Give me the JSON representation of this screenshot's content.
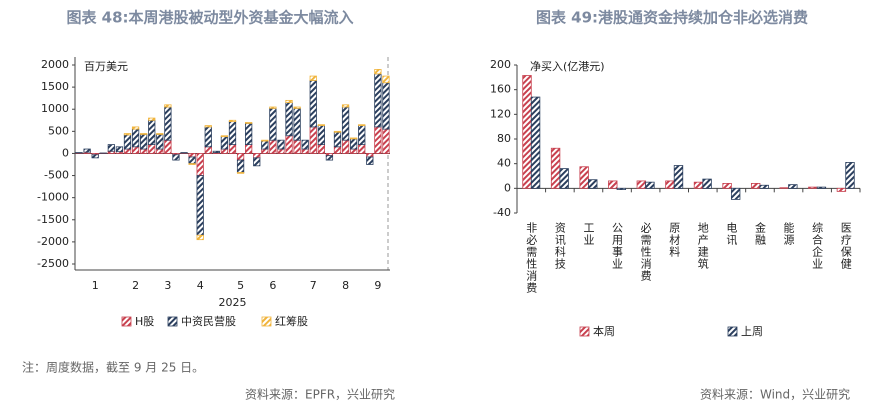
{
  "chart_data": [
    {
      "type": "bar",
      "stacked": true,
      "title": "图表 48:本周港股被动型外资基金大幅流入",
      "unit_label": "百万美元",
      "x_label": "2025",
      "categories": [
        null,
        null,
        "1",
        null,
        null,
        null,
        null,
        "2",
        null,
        null,
        null,
        "3",
        null,
        null,
        null,
        "4",
        null,
        null,
        null,
        null,
        "5",
        null,
        null,
        null,
        "6",
        null,
        null,
        null,
        null,
        "7",
        null,
        null,
        null,
        "8",
        null,
        null,
        null,
        "9",
        null
      ],
      "series": [
        {
          "name": "H股",
          "color": "#c8414f",
          "values": [
            10,
            30,
            -30,
            5,
            50,
            40,
            100,
            150,
            100,
            200,
            100,
            300,
            -30,
            10,
            -80,
            -500,
            150,
            20,
            100,
            200,
            -150,
            200,
            -100,
            100,
            300,
            100,
            400,
            300,
            100,
            600,
            200,
            -50,
            150,
            300,
            100,
            200,
            -80,
            600,
            550
          ]
        },
        {
          "name": "中资民营股",
          "color": "#2b3f5e",
          "values": [
            10,
            70,
            -70,
            5,
            150,
            110,
            320,
            400,
            330,
            550,
            330,
            750,
            -120,
            10,
            -150,
            -1350,
            450,
            30,
            280,
            520,
            -280,
            480,
            -180,
            180,
            720,
            200,
            750,
            720,
            200,
            1050,
            430,
            -100,
            330,
            750,
            230,
            430,
            -170,
            1200,
            1050
          ]
        },
        {
          "name": "红筹股",
          "color": "#f0b43c",
          "values": [
            0,
            0,
            0,
            0,
            0,
            0,
            30,
            50,
            20,
            50,
            20,
            50,
            0,
            0,
            -20,
            -100,
            30,
            0,
            20,
            30,
            -20,
            20,
            0,
            20,
            30,
            0,
            50,
            30,
            0,
            100,
            20,
            0,
            20,
            50,
            20,
            20,
            0,
            100,
            150
          ]
        }
      ],
      "ylim": [
        -2500,
        2000
      ],
      "yticks": [
        -2500,
        -2000,
        -1500,
        -1000,
        -500,
        0,
        500,
        1000,
        1500,
        2000
      ],
      "note": "注：周度数据，截至 9 月 25 日。",
      "source": "资料来源：EPFR，兴业研究"
    },
    {
      "type": "bar",
      "stacked": false,
      "title": "图表 49:港股通资金持续加仓非必选消费",
      "unit_label": "净买入(亿港元)",
      "categories": [
        "非必需性消费",
        "资讯科技",
        "工业",
        "公用事业",
        "必需性消费",
        "原材料",
        "地产建筑",
        "电讯",
        "金融",
        "能源",
        "综合企业",
        "医疗保健"
      ],
      "series": [
        {
          "name": "本周",
          "color": "#c8414f",
          "values": [
            183,
            65,
            35,
            12,
            12,
            12,
            10,
            8,
            8,
            1,
            2,
            -5
          ]
        },
        {
          "name": "上周",
          "color": "#2b3f5e",
          "values": [
            148,
            32,
            14,
            -2,
            10,
            37,
            15,
            -18,
            5,
            6,
            2,
            42
          ]
        }
      ],
      "ylim": [
        -40,
        200
      ],
      "yticks": [
        -40,
        0,
        40,
        80,
        120,
        160,
        200
      ],
      "source": "资料来源：Wind，兴业研究"
    }
  ]
}
